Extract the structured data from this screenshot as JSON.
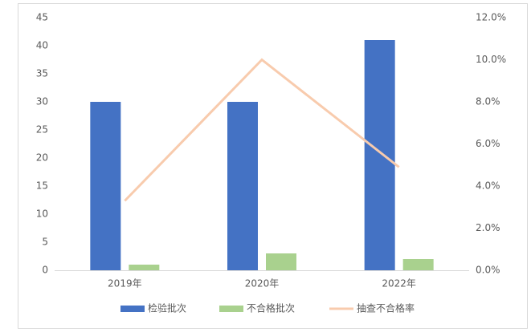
{
  "chart_data": {
    "type": "bar",
    "categories": [
      "2019年",
      "2020年",
      "2022年"
    ],
    "series": [
      {
        "name": "检验批次",
        "color": "#4472c4",
        "values": [
          30,
          30,
          41
        ]
      },
      {
        "name": "不合格批次",
        "color": "#a9d18e",
        "values": [
          1,
          3,
          2
        ]
      },
      {
        "name": "抽查不合格率",
        "color": "#f8cbad",
        "type": "line",
        "axis": "y2",
        "values": [
          3.3,
          10.0,
          4.9
        ]
      }
    ],
    "ylim": [
      0,
      45
    ],
    "yticks": [
      0,
      5,
      10,
      15,
      20,
      25,
      30,
      35,
      40,
      45
    ],
    "y2lim": [
      0,
      12
    ],
    "y2ticks": [
      {
        "value": 0,
        "label": "0.0%"
      },
      {
        "value": 2,
        "label": "2.0%"
      },
      {
        "value": 4,
        "label": "4.0%"
      },
      {
        "value": 6,
        "label": "6.0%"
      },
      {
        "value": 8,
        "label": "8.0%"
      },
      {
        "value": 10,
        "label": "10.0%"
      },
      {
        "value": 12,
        "label": "12.0%"
      }
    ],
    "grid": false,
    "legend": "bottom"
  }
}
